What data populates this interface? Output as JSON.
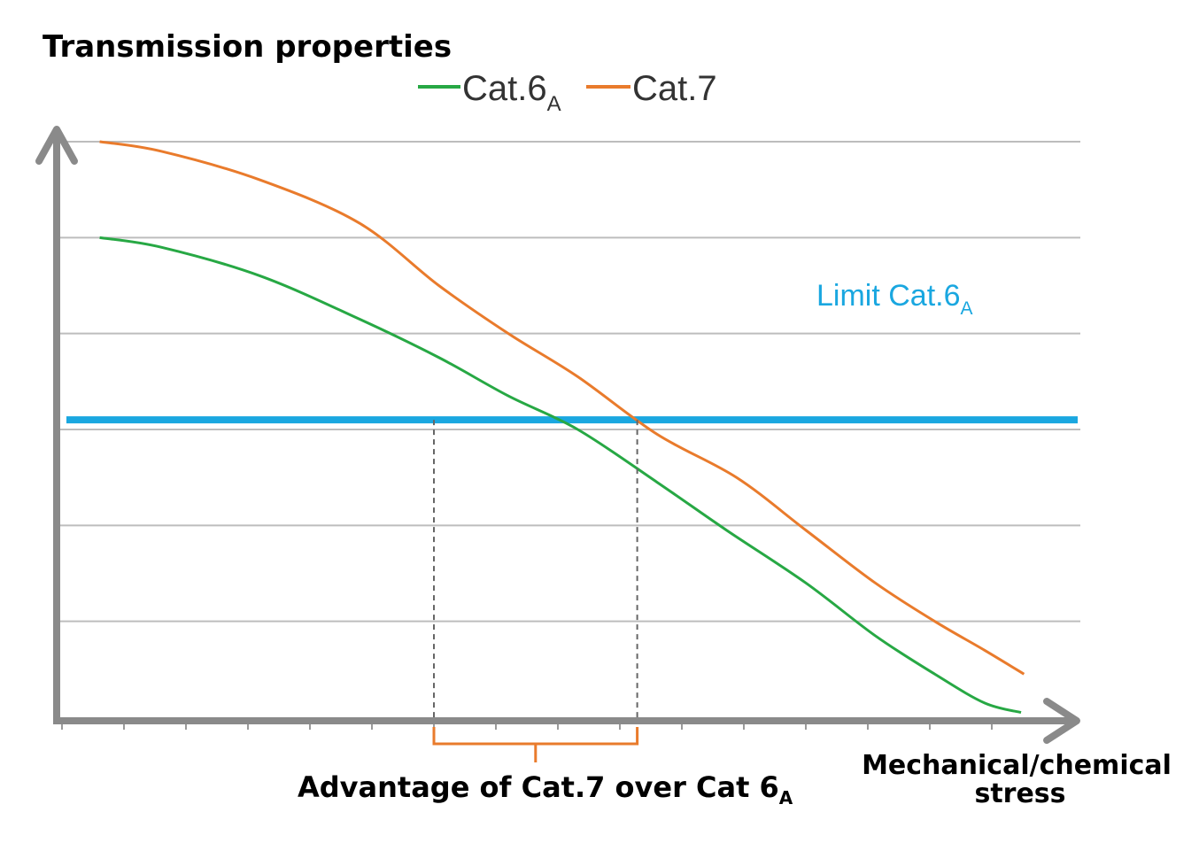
{
  "chart_data": {
    "type": "line",
    "title": "",
    "ylabel": "Transmission properties",
    "xlabel": "Mechanical/chemical stress",
    "xlabel_lines": [
      "Mechanical/chemical",
      "stress"
    ],
    "xlim": [
      0,
      100
    ],
    "ylim": [
      0,
      6
    ],
    "grid": true,
    "gridlines_y": [
      1,
      2,
      3,
      4,
      5,
      6
    ],
    "x_ticks": [
      0,
      6.25,
      12.5,
      18.75,
      25,
      31.25,
      37.5,
      43.75,
      50,
      56.25,
      62.5,
      68.75,
      75,
      81.25,
      87.5,
      93.75
    ],
    "legend_position": "top-center",
    "series": [
      {
        "name": "Cat.6",
        "subscript": "A",
        "color": "#27a844",
        "x": [
          3.8,
          10,
          20,
          30,
          38,
          45,
          52,
          60,
          67,
          75,
          82,
          88,
          93,
          96.7
        ],
        "values": [
          5.0,
          4.9,
          4.6,
          4.15,
          3.75,
          3.35,
          3.0,
          2.45,
          1.95,
          1.4,
          0.85,
          0.45,
          0.15,
          0.05
        ]
      },
      {
        "name": "Cat.7",
        "subscript": "",
        "color": "#e97b2c",
        "x": [
          3.8,
          10,
          20,
          30,
          38,
          45,
          52,
          60,
          68,
          75,
          82,
          88,
          93,
          97
        ],
        "values": [
          6.0,
          5.9,
          5.6,
          5.15,
          4.5,
          4.0,
          3.55,
          2.95,
          2.5,
          1.95,
          1.4,
          1.0,
          0.7,
          0.45
        ]
      }
    ],
    "limit_line": {
      "label": "Limit Cat.6",
      "subscript": "A",
      "value": 3.1,
      "color": "#1aa7e0"
    },
    "annotation": {
      "label": "Advantage of Cat.7 over Cat 6",
      "subscript": "A",
      "x_start": 37.5,
      "x_end": 58,
      "bracket_color": "#e97b2c",
      "dash_color": "#666666"
    }
  }
}
